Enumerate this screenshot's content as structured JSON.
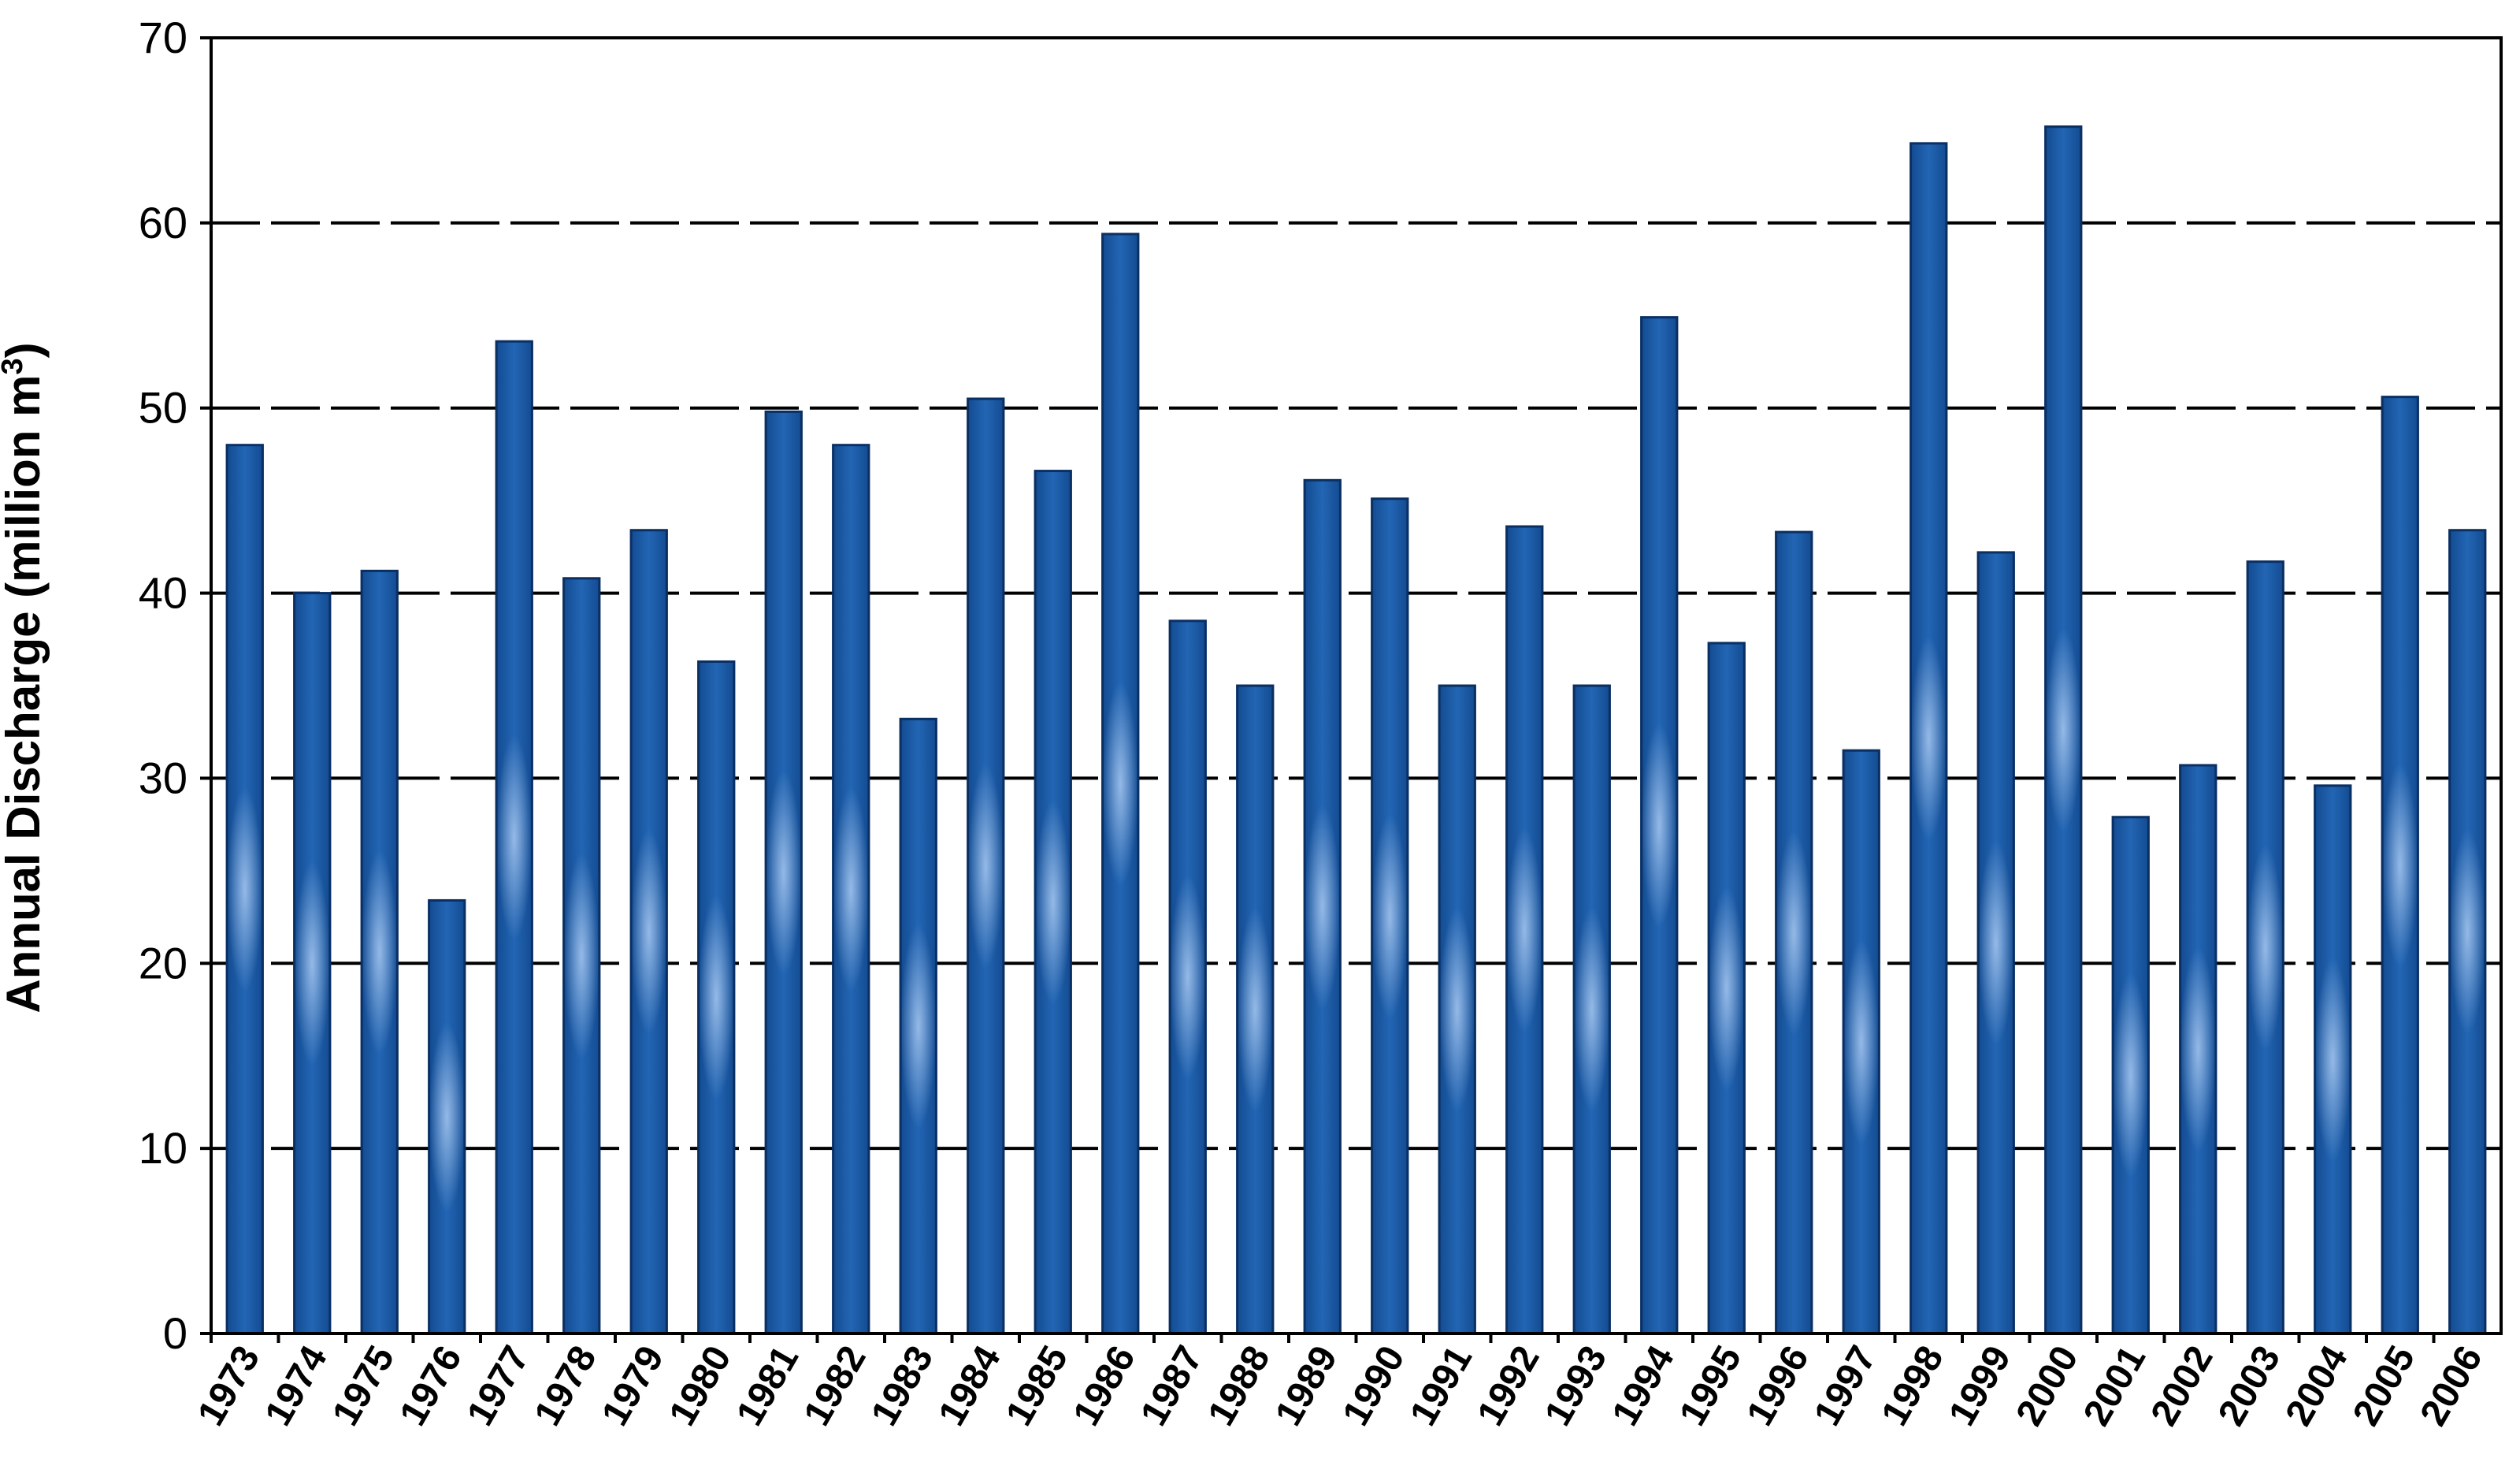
{
  "chart_data": {
    "type": "bar",
    "title": "",
    "xlabel": "",
    "ylabel": "Annual Discharge (million m",
    "ylabel_superscript": "3",
    "ylabel_suffix": ")",
    "ylim": [
      0,
      70
    ],
    "yticks": [
      0,
      10,
      20,
      30,
      40,
      50,
      60,
      70
    ],
    "grid": "horizontal dashed",
    "legend": "none",
    "bar_color": "#1a5aa6",
    "categories": [
      "1973",
      "1974",
      "1975",
      "1976",
      "1977",
      "1978",
      "1979",
      "1980",
      "1981",
      "1982",
      "1983",
      "1984",
      "1985",
      "1986",
      "1987",
      "1988",
      "1989",
      "1990",
      "1991",
      "1992",
      "1993",
      "1994",
      "1995",
      "1996",
      "1997",
      "1998",
      "1999",
      "2000",
      "2001",
      "2002",
      "2003",
      "2004",
      "2005",
      "2006"
    ],
    "values": [
      48.0,
      40.0,
      41.2,
      23.4,
      53.6,
      40.8,
      43.4,
      36.3,
      49.8,
      48.0,
      33.2,
      50.5,
      46.6,
      59.4,
      38.5,
      35.0,
      46.1,
      45.1,
      35.0,
      43.6,
      35.0,
      54.9,
      37.3,
      43.3,
      31.5,
      64.3,
      42.2,
      65.2,
      27.9,
      30.7,
      41.7,
      29.6,
      50.6,
      43.4
    ]
  }
}
